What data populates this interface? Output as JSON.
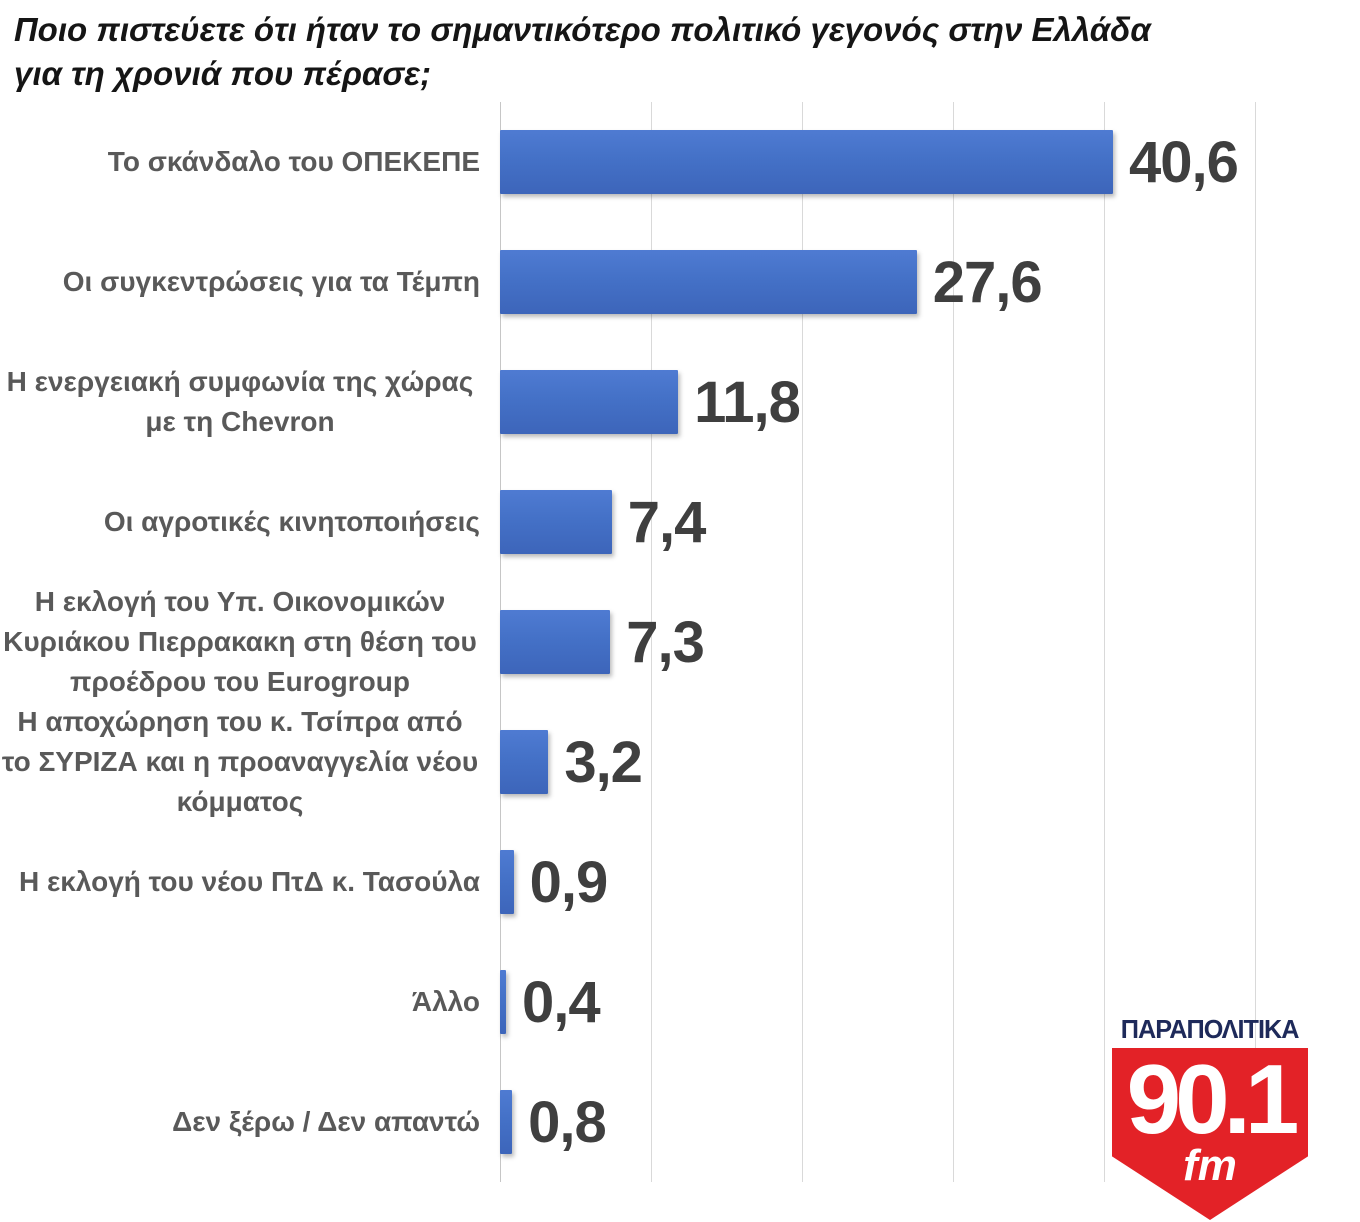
{
  "title": "Ποιο πιστεύετε ότι ήταν το σημαντικότερο πολιτικό γεγονός στην Ελλάδα για τη χρονιά που πέρασε;",
  "chart_data": {
    "type": "bar",
    "orientation": "horizontal",
    "categories": [
      "Το σκάνδαλο του ΟΠΕΚΕΠΕ",
      "Οι συγκεντρώσεις για τα Τέμπη",
      "Η ενεργειακή συμφωνία της χώρας με τη Chevron",
      "Οι αγροτικές κινητοποιήσεις",
      "Η εκλογή του Υπ. Οικονομικών Κυριάκου Πιερρακακη στη θέση του προέδρου του Eurogroup",
      "Η αποχώρηση του κ. Τσίπρα από το ΣΥΡΙΖΑ και η προαναγγελία νέου κόμματος",
      "Η εκλογή του νέου ΠτΔ κ. Τασούλα",
      "Άλλο",
      "Δεν ξέρω / Δεν απαντώ"
    ],
    "values": [
      40.6,
      27.6,
      11.8,
      7.4,
      7.3,
      3.2,
      0.9,
      0.4,
      0.8
    ],
    "value_labels": [
      "40,6",
      "27,6",
      "11,8",
      "7,4",
      "7,3",
      "3,2",
      "0,9",
      "0,4",
      "0,8"
    ],
    "xlim": [
      0,
      50
    ],
    "gridline_interval": 10,
    "grid": true,
    "legend": "none",
    "bar_color": "#4472c4",
    "value_label_color": "#3f3f3f",
    "category_label_color": "#595959",
    "gridline_color": "#d9d9d9"
  },
  "logo": {
    "brand": "ΠΑΡΑΠΟΛΙΤΙΚΑ",
    "frequency": "90.1",
    "band": "fm",
    "badge_color": "#e32227",
    "brand_color": "#1e2a5a"
  }
}
